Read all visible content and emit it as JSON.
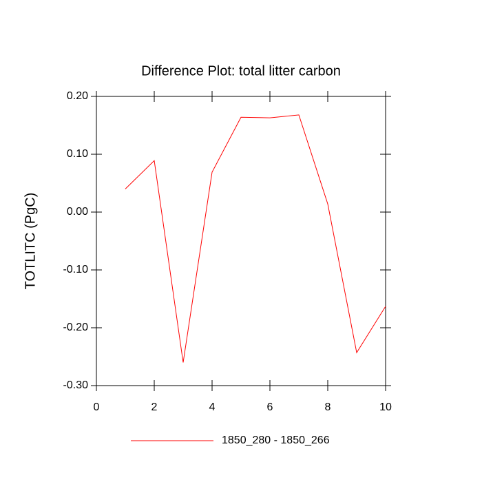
{
  "chart_data": {
    "type": "line",
    "title": "Difference Plot: total litter carbon",
    "y_label": "TOTLITC  (PgC)",
    "x": [
      1,
      2,
      3,
      4,
      5,
      6,
      7,
      8,
      9,
      10
    ],
    "series": [
      {
        "name": "1850_280 - 1850_266",
        "color": "#ff0000",
        "values": [
          0.04,
          0.089,
          -0.26,
          0.069,
          0.164,
          0.163,
          0.168,
          0.014,
          -0.243,
          -0.163
        ]
      }
    ],
    "xlim": [
      0,
      10
    ],
    "xticks": [
      0,
      2,
      4,
      6,
      8,
      10
    ],
    "ylim": [
      -0.3,
      0.2
    ],
    "yticks": [
      {
        "value": -0.3,
        "label": "-0.30"
      },
      {
        "value": -0.2,
        "label": "-0.20"
      },
      {
        "value": -0.1,
        "label": "-0.10"
      },
      {
        "value": 0,
        "label": "0.00"
      },
      {
        "value": 0.1,
        "label": "0.10"
      },
      {
        "value": 0.2,
        "label": "0.20"
      }
    ],
    "legend": "bottom"
  }
}
